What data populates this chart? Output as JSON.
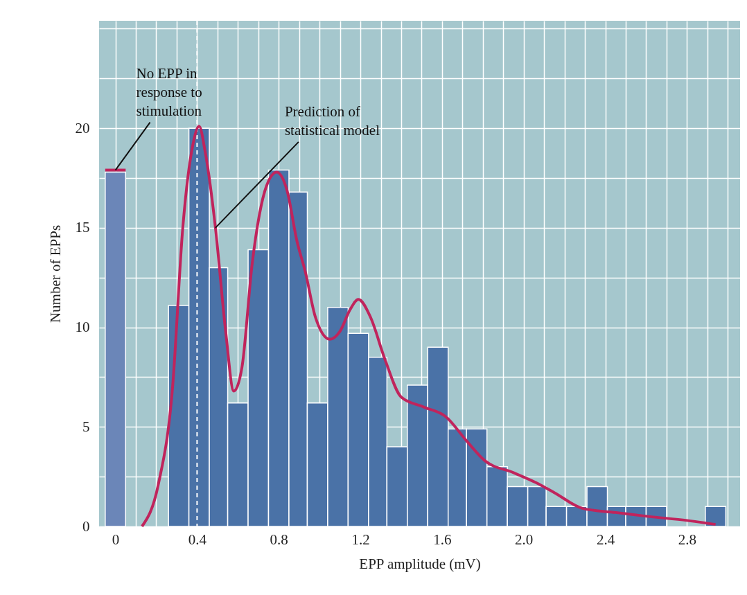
{
  "chart_data": {
    "type": "histogram",
    "xlabel": "EPP amplitude (mV)",
    "ylabel": "Number of  EPPs",
    "bins": [
      -0.05,
      0.05,
      0.26,
      0.36,
      0.46,
      0.55,
      0.65,
      0.75,
      0.85,
      0.94,
      1.04,
      1.14,
      1.24,
      1.33,
      1.43,
      1.53,
      1.63,
      1.72,
      1.82,
      1.92,
      2.02,
      2.11,
      2.21,
      2.31,
      2.41,
      2.5,
      2.6,
      2.7,
      2.89,
      2.99
    ],
    "values": [
      17.8,
      null,
      11.1,
      20.0,
      13.0,
      6.2,
      13.9,
      17.9,
      16.8,
      6.2,
      11.0,
      9.7,
      8.5,
      4.0,
      7.1,
      9.0,
      4.9,
      4.9,
      3,
      2,
      2,
      1,
      1,
      2,
      1,
      1,
      1,
      null,
      1
    ],
    "colors": [
      "#6b86b8",
      "#4a72a7",
      "#4a72a7",
      "#4a72a7",
      "#4a72a7",
      "#4a72a7",
      "#4a72a7",
      "#4a72a7",
      "#4a72a7",
      "#4a72a7",
      "#4a72a7",
      "#4a72a7",
      "#4a72a7",
      "#4a72a7",
      "#4a72a7",
      "#4a72a7",
      "#4a72a7",
      "#4a72a7",
      "#4a72a7",
      "#4a72a7",
      "#4a72a7",
      "#4a72a7",
      "#4a72a7",
      "#4a72a7",
      "#4a72a7",
      "#4a72a7",
      "#4a72a7",
      "#4a72a7",
      "#4a72a7"
    ],
    "series": [
      {
        "type": "line",
        "color": "#c0245c",
        "x": [
          0.13,
          0.21,
          0.28,
          0.33,
          0.38,
          0.41,
          0.44,
          0.49,
          0.54,
          0.58,
          0.62,
          0.67,
          0.74,
          0.79,
          0.84,
          0.89,
          0.93,
          0.98,
          1.05,
          1.1,
          1.15,
          1.19,
          1.25,
          1.32,
          1.4,
          1.51,
          1.62,
          1.72,
          1.81,
          1.95,
          2.06,
          2.15,
          2.29,
          2.45,
          2.61,
          2.8,
          2.94
        ],
        "values": [
          0,
          2.1,
          7.0,
          15.0,
          19.2,
          20.1,
          18.8,
          15.0,
          9.8,
          6.8,
          8.0,
          13.2,
          17.1,
          17.8,
          16.9,
          14.3,
          12.8,
          10.5,
          9.4,
          9.8,
          10.9,
          11.4,
          10.5,
          8.4,
          6.5,
          6.0,
          5.5,
          4.3,
          3.3,
          2.7,
          2.2,
          1.7,
          0.9,
          0.7,
          0.5,
          0.3,
          0.1
        ]
      },
      {
        "type": "line",
        "color": "#c0245c",
        "x": [
          -0.05,
          0.05
        ],
        "values": [
          17.9,
          17.9
        ]
      }
    ],
    "xlim": [
      -0.08,
      3.06
    ],
    "ylim": [
      0,
      25.4
    ],
    "xticks": [
      0,
      {
        "value": 0.1,
        "label": null
      },
      {
        "value": 0.2,
        "label": null
      },
      {
        "value": 0.3,
        "label": null
      },
      0.4,
      {
        "value": 0.5,
        "label": null
      },
      {
        "value": 0.6,
        "label": null
      },
      {
        "value": 0.7,
        "label": null
      },
      0.8,
      {
        "value": 0.9,
        "label": null
      },
      {
        "value": 1.0,
        "label": null
      },
      {
        "value": 1.1,
        "label": null
      },
      1.2,
      {
        "value": 1.3,
        "label": null
      },
      {
        "value": 1.4,
        "label": null
      },
      {
        "value": 1.5,
        "label": null
      },
      1.6,
      {
        "value": 1.7,
        "label": null
      },
      {
        "value": 1.8,
        "label": null
      },
      {
        "value": 1.9,
        "label": null
      },
      {
        "value": 2.0,
        "label": "2.0"
      },
      {
        "value": 2.1,
        "label": null
      },
      {
        "value": 2.2,
        "label": null
      },
      {
        "value": 2.3,
        "label": null
      },
      2.4,
      {
        "value": 2.5,
        "label": null
      },
      {
        "value": 2.6,
        "label": null
      },
      {
        "value": 2.7,
        "label": null
      },
      2.8,
      {
        "value": 2.9,
        "label": null
      },
      {
        "value": 3.0,
        "label": null
      }
    ],
    "yticks": [
      0,
      {
        "value": 2.5,
        "label": null
      },
      5,
      {
        "value": 7.5,
        "label": null
      },
      10,
      {
        "value": 12.5,
        "label": null
      },
      15,
      {
        "value": 17.5,
        "label": null
      },
      20,
      {
        "value": 22.5,
        "label": null
      },
      {
        "value": 25,
        "label": null
      }
    ],
    "grid": true,
    "ref_lines": [
      {
        "axis": "x",
        "value": 0.4,
        "color": "#ffffff",
        "line_style": "dashed"
      }
    ],
    "annotations": [
      {
        "text": "No EPP in response to stimulation",
        "x": 0,
        "y": 17.9
      },
      {
        "text": "Prediction of statistical model",
        "x": 0.49,
        "y": 15.0
      }
    ]
  }
}
